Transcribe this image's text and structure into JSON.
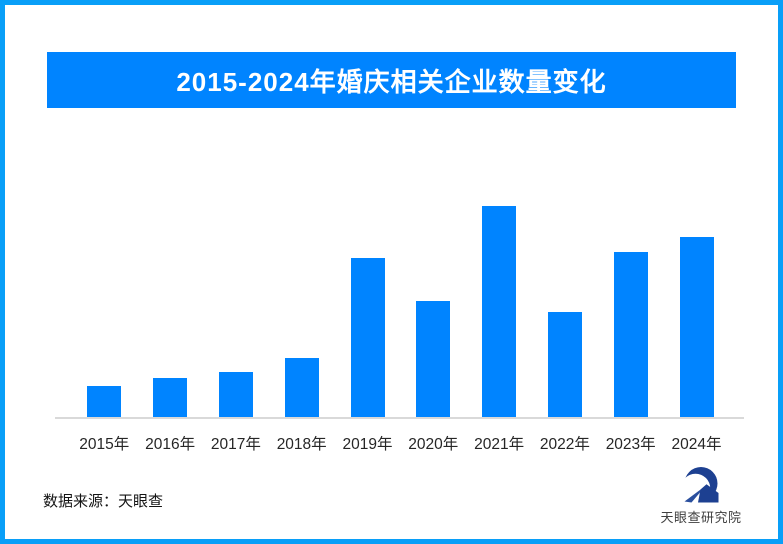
{
  "frame": {
    "border_color": "#099ff8",
    "background": "#ffffff"
  },
  "banner": {
    "label": "2015-2024年婚庆相关企业数量变化",
    "bg": "#0084ff",
    "text_color": "#ffffff"
  },
  "chart_data": {
    "type": "bar",
    "title": "2015-2024年婚庆相关企业数量变化",
    "categories": [
      "2015年",
      "2016年",
      "2017年",
      "2018年",
      "2019年",
      "2020年",
      "2021年",
      "2022年",
      "2023年",
      "2024年"
    ],
    "values": [
      14.7,
      18.5,
      21.3,
      28.0,
      75.4,
      55.0,
      100.0,
      49.8,
      78.2,
      85.3
    ],
    "values_unit": "relative height, tallest bar (2021) = 100; no numeric labels shown in chart",
    "xlabel": "",
    "ylabel": "",
    "ylim": [
      0,
      100
    ],
    "grid": false,
    "legend": null,
    "bar_color": "#0084ff",
    "axis_line_color": "#d9d9d9",
    "tick_label_color": "#262626"
  },
  "footer": {
    "source_label": "数据来源：天眼查"
  },
  "logo": {
    "name": "天眼查研究院",
    "icon": "tianyancha-eye-logo-icon",
    "icon_color": "#1d4091",
    "icon_accent_color": "#2a4f9e",
    "text_color": "#3f3f3f"
  }
}
